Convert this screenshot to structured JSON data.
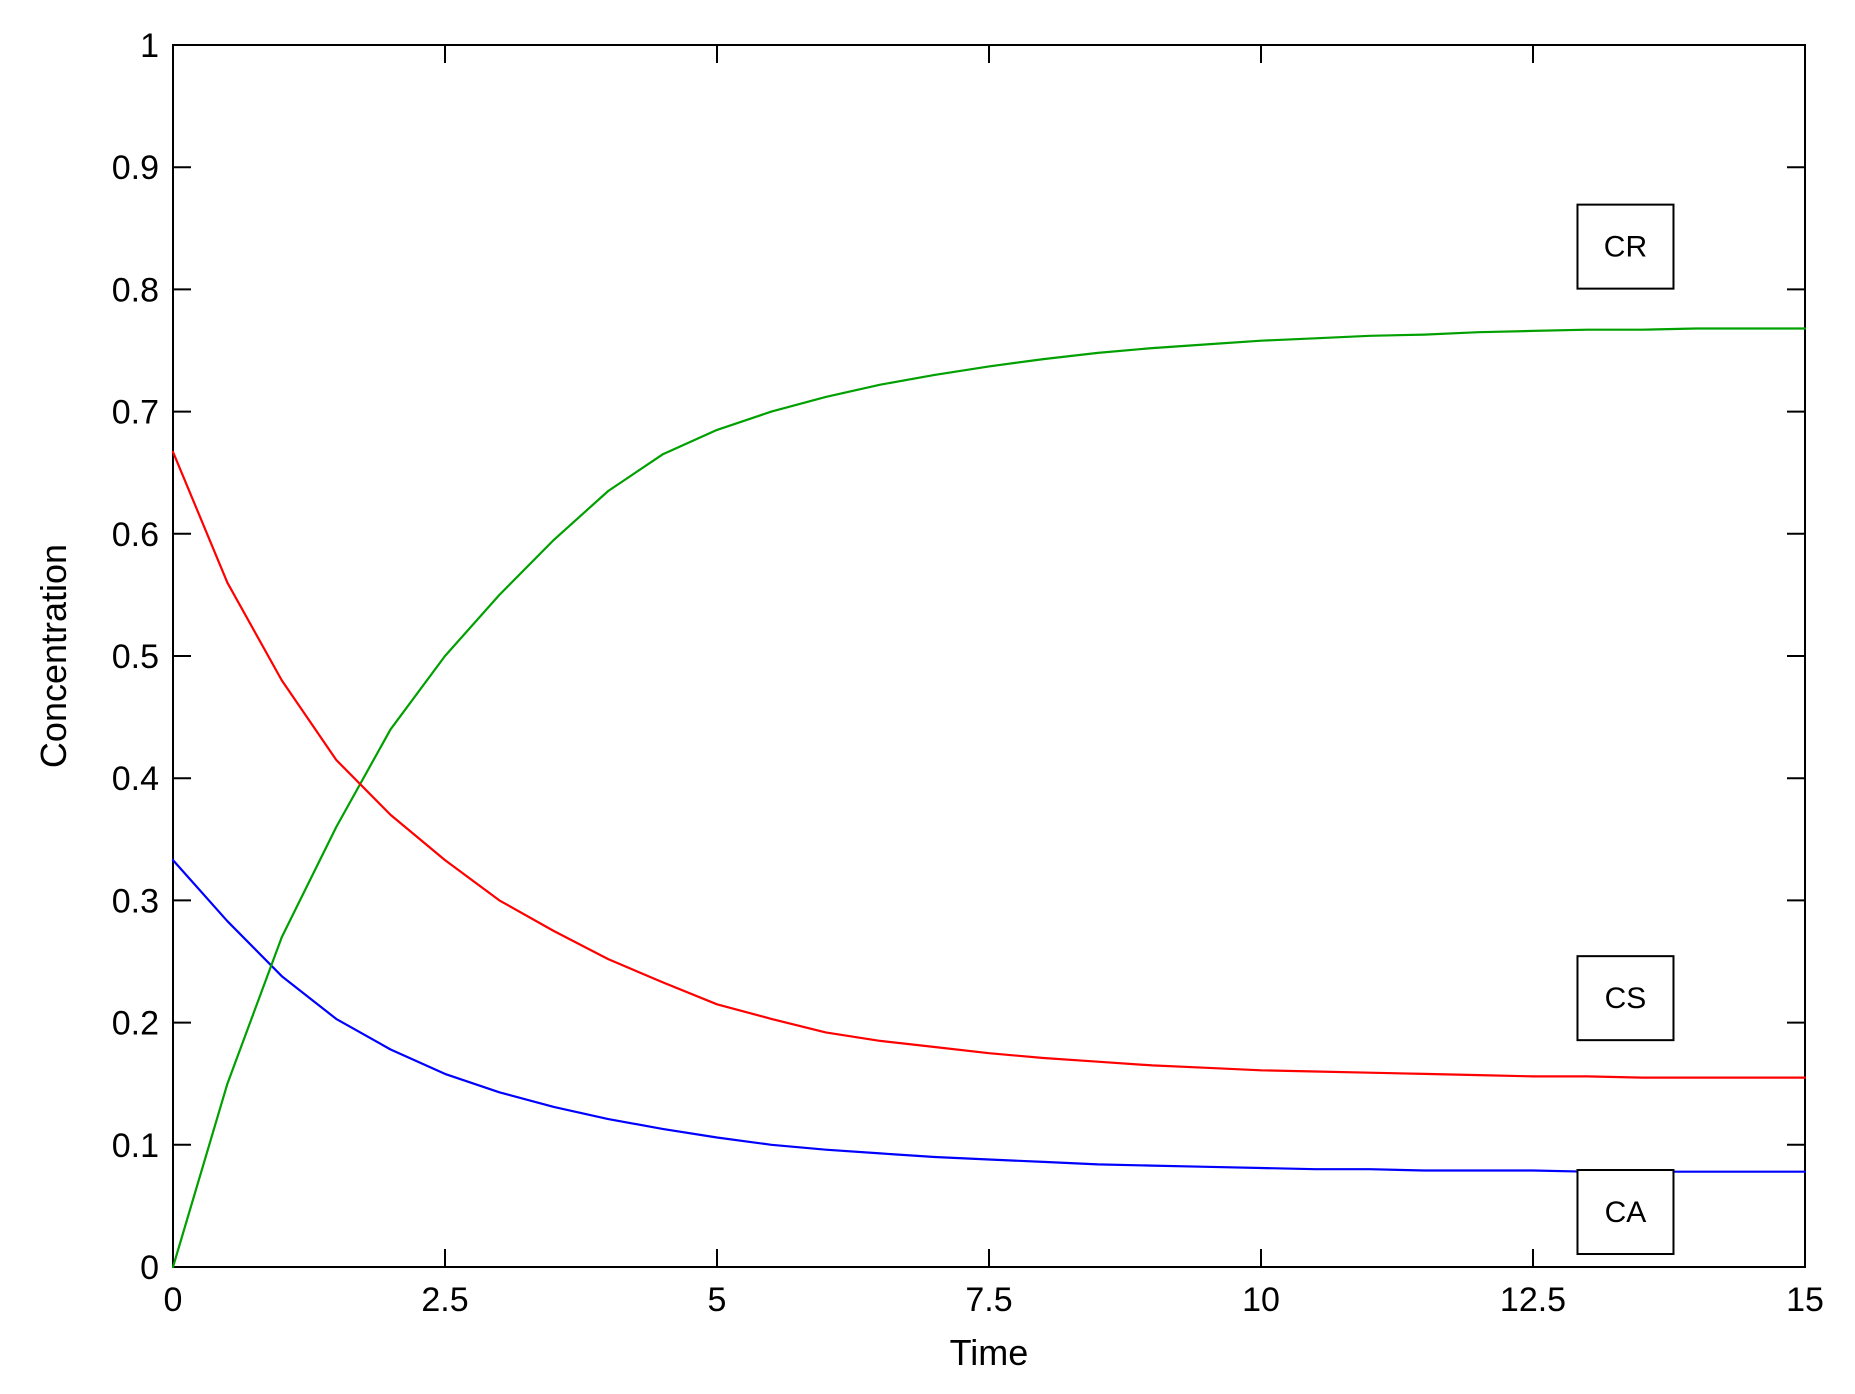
{
  "chart_data": {
    "type": "line",
    "title": "",
    "xlabel": "Time",
    "ylabel": "Concentration",
    "xlim": [
      0,
      15
    ],
    "ylim": [
      0,
      1
    ],
    "xticks": [
      0,
      2.5,
      5,
      7.5,
      10,
      12.5,
      15
    ],
    "xtick_labels": [
      "0",
      "2.5",
      "5",
      "7.5",
      "10",
      "12.5",
      "15"
    ],
    "yticks": [
      0,
      0.1,
      0.2,
      0.3,
      0.4,
      0.5,
      0.6,
      0.7,
      0.8,
      0.9,
      1
    ],
    "ytick_labels": [
      "0",
      "0.1",
      "0.2",
      "0.3",
      "0.4",
      "0.5",
      "0.6",
      "0.7",
      "0.8",
      "0.9",
      "1"
    ],
    "grid": false,
    "x": [
      0,
      0.5,
      1,
      1.5,
      2,
      2.5,
      3,
      3.5,
      4,
      4.5,
      5,
      5.5,
      6,
      6.5,
      7,
      7.5,
      8,
      8.5,
      9,
      9.5,
      10,
      10.5,
      11,
      11.5,
      12,
      12.5,
      13,
      13.5,
      14,
      14.5,
      15
    ],
    "series": [
      {
        "color": "#0000ff",
        "values": [
          0.333,
          0.283,
          0.238,
          0.203,
          0.178,
          0.158,
          0.143,
          0.131,
          0.121,
          0.113,
          0.106,
          0.1,
          0.096,
          0.093,
          0.09,
          0.088,
          0.086,
          0.084,
          0.083,
          0.082,
          0.081,
          0.08,
          0.08,
          0.079,
          0.079,
          0.079,
          0.078,
          0.078,
          0.078,
          0.078,
          0.078
        ]
      },
      {
        "color": "#00a000",
        "values": [
          0.0,
          0.15,
          0.27,
          0.36,
          0.44,
          0.5,
          0.55,
          0.595,
          0.635,
          0.665,
          0.685,
          0.7,
          0.712,
          0.722,
          0.73,
          0.737,
          0.743,
          0.748,
          0.752,
          0.755,
          0.758,
          0.76,
          0.762,
          0.763,
          0.765,
          0.766,
          0.767,
          0.767,
          0.768,
          0.768,
          0.768
        ]
      },
      {
        "color": "#ff0000",
        "values": [
          0.667,
          0.56,
          0.48,
          0.415,
          0.37,
          0.333,
          0.3,
          0.275,
          0.252,
          0.233,
          0.215,
          0.203,
          0.192,
          0.185,
          0.18,
          0.175,
          0.171,
          0.168,
          0.165,
          0.163,
          0.161,
          0.16,
          0.159,
          0.158,
          0.157,
          0.156,
          0.156,
          0.155,
          0.155,
          0.155,
          0.155
        ]
      }
    ],
    "annotations": [
      {
        "text": "CR",
        "x": 13.35,
        "y": 0.835
      },
      {
        "text": "CS",
        "x": 13.35,
        "y": 0.22
      },
      {
        "text": "CA",
        "x": 13.35,
        "y": 0.045
      }
    ]
  }
}
